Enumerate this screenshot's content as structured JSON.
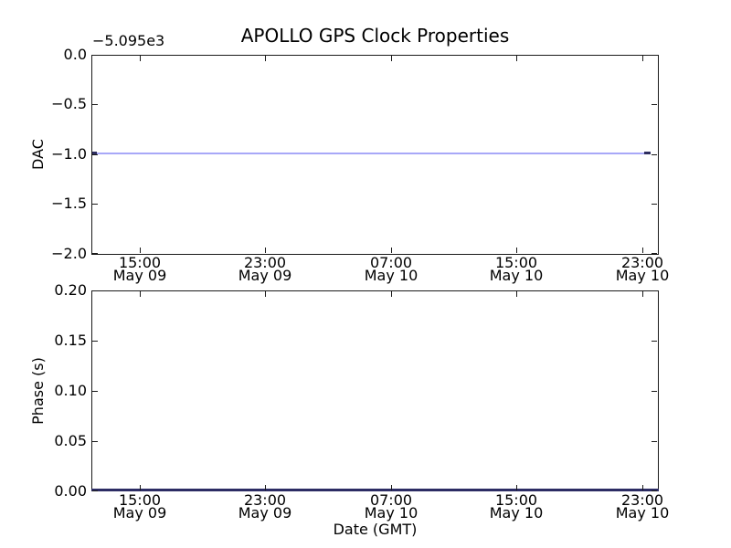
{
  "figure": {
    "background": "#ffffff",
    "axis_color": "#1a1a1a"
  },
  "chart_data": [
    {
      "id": "dac",
      "type": "line",
      "title": "APOLLO GPS Clock Properties",
      "ylabel": "DAC",
      "xlabel": "",
      "y_offset_text": "−5.095e3",
      "ylim": [
        -2.0,
        0.0
      ],
      "yticks": [
        "0.0",
        "−0.5",
        "−1.0",
        "−1.5",
        "−2.0"
      ],
      "xticks": [
        {
          "time": "15:00",
          "date": "May 09"
        },
        {
          "time": "23:00",
          "date": "May 09"
        },
        {
          "time": "07:00",
          "date": "May 10"
        },
        {
          "time": "15:00",
          "date": "May 10"
        },
        {
          "time": "23:00",
          "date": "May 10"
        }
      ],
      "grid": false,
      "legend": "none",
      "series": [
        {
          "name": "DAC",
          "shape": "constant-horizontal-line",
          "y_value_displayed": -1.0,
          "note_axis_offset": "−5.095e3",
          "color": "#a8a8f8",
          "endpoint_color": "#2d2d5f"
        }
      ]
    },
    {
      "id": "phase",
      "type": "line",
      "title": "",
      "ylabel": "Phase (s)",
      "xlabel": "Date (GMT)",
      "ylim": [
        0.0,
        0.2
      ],
      "yticks": [
        "0.20",
        "0.15",
        "0.10",
        "0.05",
        "0.00"
      ],
      "xticks": [
        {
          "time": "15:00",
          "date": "May 09"
        },
        {
          "time": "23:00",
          "date": "May 09"
        },
        {
          "time": "07:00",
          "date": "May 10"
        },
        {
          "time": "15:00",
          "date": "May 10"
        },
        {
          "time": "23:00",
          "date": "May 10"
        }
      ],
      "grid": false,
      "legend": "none",
      "series": [
        {
          "name": "Phase",
          "shape": "constant-horizontal-line",
          "y_value_displayed": 0.0,
          "color": "#2c2c64"
        }
      ]
    }
  ]
}
